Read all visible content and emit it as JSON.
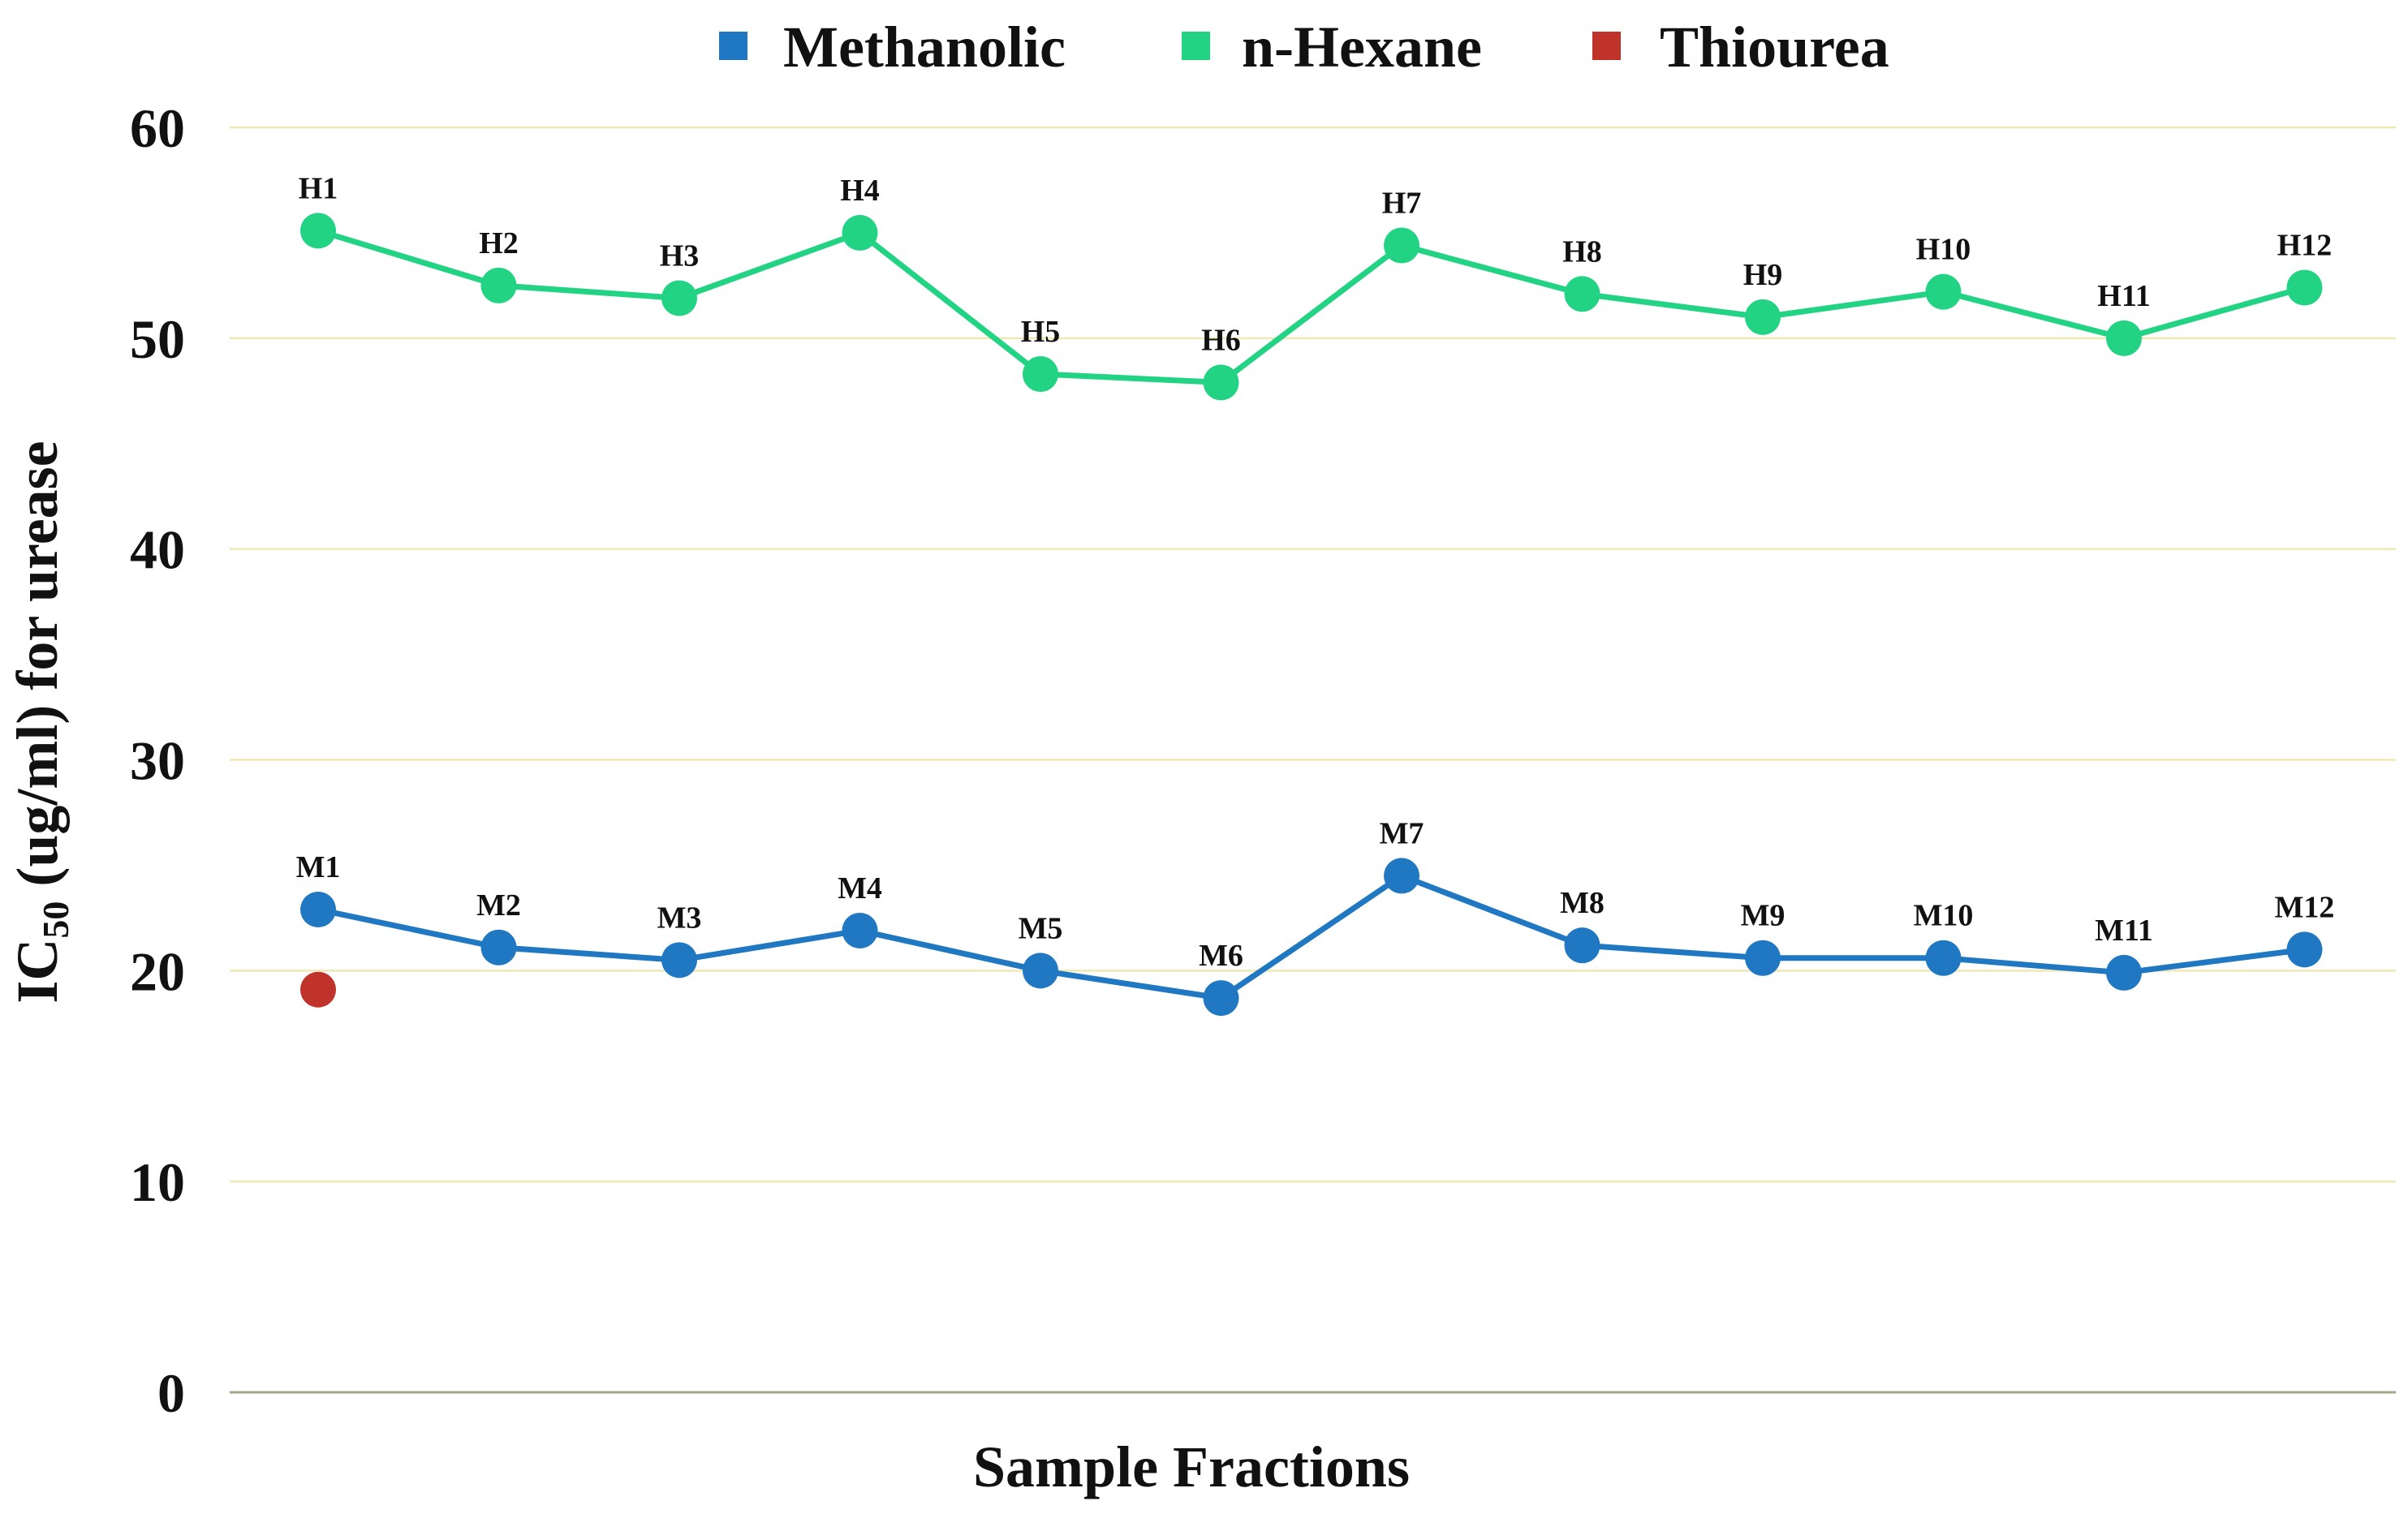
{
  "chart_data": {
    "type": "line",
    "title": "",
    "xlabel": "Sample Fractions",
    "ylabel": {
      "main": "IC",
      "subscript": "50",
      "rest": " (ug/ml) for  urease"
    },
    "ylim": [
      0,
      60
    ],
    "yticks": [
      "0",
      "10",
      "20",
      "30",
      "40",
      "50",
      "60"
    ],
    "grid": true,
    "legend_position": "top-center",
    "series": [
      {
        "name": "Methanolic",
        "color": "#1f78c1",
        "labels": [
          "M1",
          "M2",
          "M3",
          "M4",
          "M5",
          "M6",
          "M7",
          "M8",
          "M9",
          "M10",
          "M11",
          "M12"
        ],
        "values": [
          22.9,
          21.1,
          20.5,
          21.9,
          20.0,
          18.7,
          24.5,
          21.2,
          20.6,
          20.6,
          19.9,
          21.0
        ]
      },
      {
        "name": "n-Hexane",
        "color": "#22d383",
        "labels": [
          "H1",
          "H2",
          "H3",
          "H4",
          "H5",
          "H6",
          "H7",
          "H8",
          "H9",
          "H10",
          "H11",
          "H12"
        ],
        "values": [
          55.1,
          52.5,
          51.9,
          55.0,
          48.3,
          47.9,
          54.4,
          52.1,
          51.0,
          52.2,
          50.0,
          52.4
        ]
      },
      {
        "name": "Thiourea",
        "color": "#c0332b",
        "labels": [
          ""
        ],
        "values": [
          19.1
        ]
      }
    ]
  }
}
